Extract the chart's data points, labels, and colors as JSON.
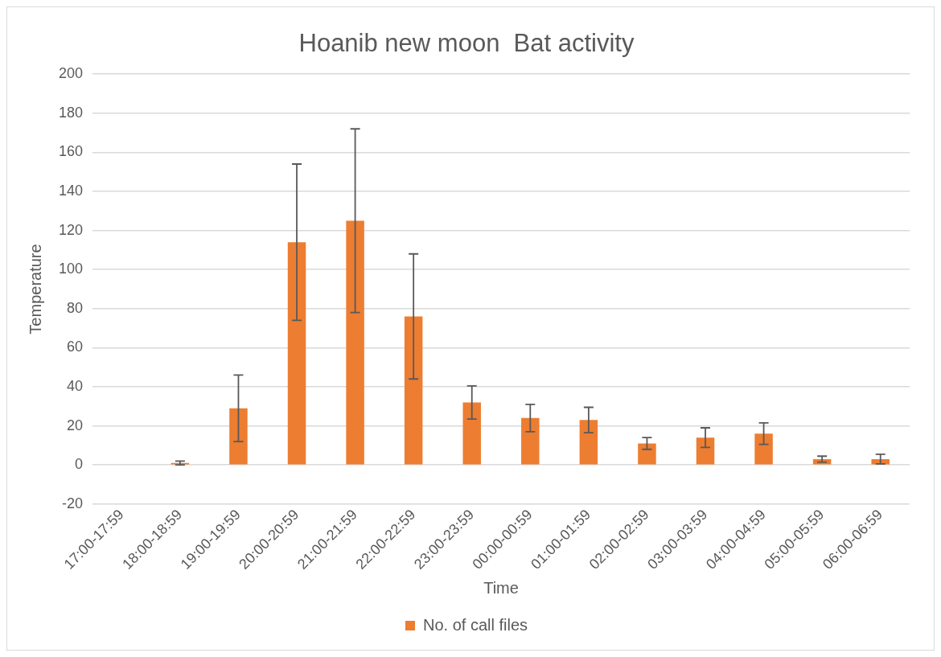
{
  "chart_data": {
    "type": "bar",
    "title": "Hoanib new moon  Bat activity",
    "xlabel": "Time",
    "ylabel": "Temperature",
    "categories": [
      "17:00-17:59",
      "18:00-18:59",
      "19:00-19:59",
      "20:00-20:59",
      "21:00-21:59",
      "22:00-22:59",
      "23:00-23:59",
      "00:00-00:59",
      "01:00-01:59",
      "02:00-02:59",
      "03:00-03:59",
      "04:00-04:59",
      "05:00-05:59",
      "06:00-06:59"
    ],
    "series": [
      {
        "name": "No. of call files",
        "color": "#ed7d31",
        "values": [
          0,
          1,
          29,
          114,
          125,
          76,
          32,
          24,
          23,
          11,
          14,
          16,
          3,
          3
        ],
        "errors": [
          null,
          1,
          17,
          40,
          47,
          32,
          8.5,
          7,
          6.5,
          3,
          5,
          5.5,
          1.5,
          2.5
        ]
      }
    ],
    "ylim": [
      -20,
      200
    ],
    "yticks": [
      -20,
      0,
      20,
      40,
      60,
      80,
      100,
      120,
      140,
      160,
      180,
      200
    ],
    "grid": "y",
    "legend": "bottom"
  }
}
